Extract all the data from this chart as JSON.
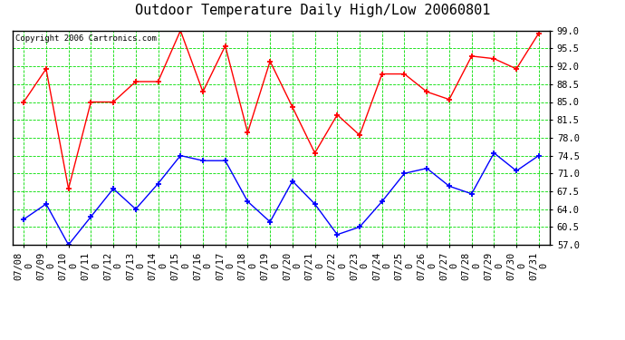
{
  "title": "Outdoor Temperature Daily High/Low 20060801",
  "copyright": "Copyright 2006 Cartronics.com",
  "dates": [
    "07/08",
    "07/09",
    "07/10",
    "07/11",
    "07/12",
    "07/13",
    "07/14",
    "07/15",
    "07/16",
    "07/17",
    "07/18",
    "07/19",
    "07/20",
    "07/21",
    "07/22",
    "07/23",
    "07/24",
    "07/25",
    "07/26",
    "07/27",
    "07/28",
    "07/29",
    "07/30",
    "07/31"
  ],
  "high": [
    85.0,
    91.5,
    68.0,
    85.0,
    85.0,
    89.0,
    89.0,
    99.0,
    87.0,
    96.0,
    79.0,
    93.0,
    84.0,
    75.0,
    82.5,
    78.5,
    90.5,
    90.5,
    87.0,
    85.5,
    94.0,
    93.5,
    91.5,
    98.5
  ],
  "low": [
    62.0,
    65.0,
    57.0,
    62.5,
    68.0,
    64.0,
    69.0,
    74.5,
    73.5,
    73.5,
    65.5,
    61.5,
    69.5,
    65.0,
    59.0,
    60.5,
    65.5,
    71.0,
    72.0,
    68.5,
    67.0,
    75.0,
    71.5,
    74.5
  ],
  "high_color": "red",
  "low_color": "blue",
  "bg_color": "#ffffff",
  "plot_bg_color": "#ffffff",
  "grid_color": "#00dd00",
  "ylim": [
    57.0,
    99.0
  ],
  "yticks": [
    57.0,
    60.5,
    64.0,
    67.5,
    71.0,
    74.5,
    78.0,
    81.5,
    85.0,
    88.5,
    92.0,
    95.5,
    99.0
  ],
  "title_fontsize": 11,
  "copyright_fontsize": 6.5,
  "tick_fontsize": 7.5
}
